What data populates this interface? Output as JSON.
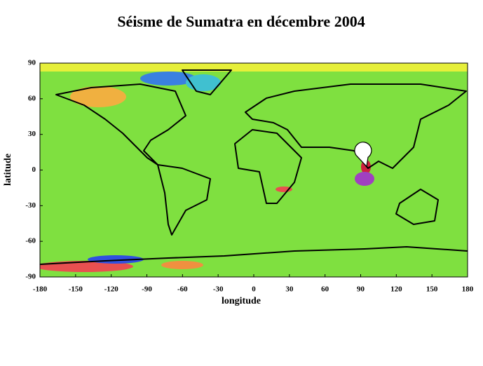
{
  "chart_data": {
    "type": "map",
    "title": "Séisme de Sumatra en décembre 2004",
    "xlabel": "longitude",
    "ylabel": "latitude",
    "xlim": [
      -180,
      180
    ],
    "ylim": [
      -90,
      90
    ],
    "xticks": [
      -180,
      -150,
      -120,
      -90,
      -60,
      -30,
      0,
      30,
      60,
      90,
      120,
      150,
      180
    ],
    "yticks": [
      -90,
      -60,
      -30,
      0,
      30,
      60,
      90
    ],
    "points": {
      "x": [
        95
      ],
      "y": [
        3
      ]
    }
  }
}
